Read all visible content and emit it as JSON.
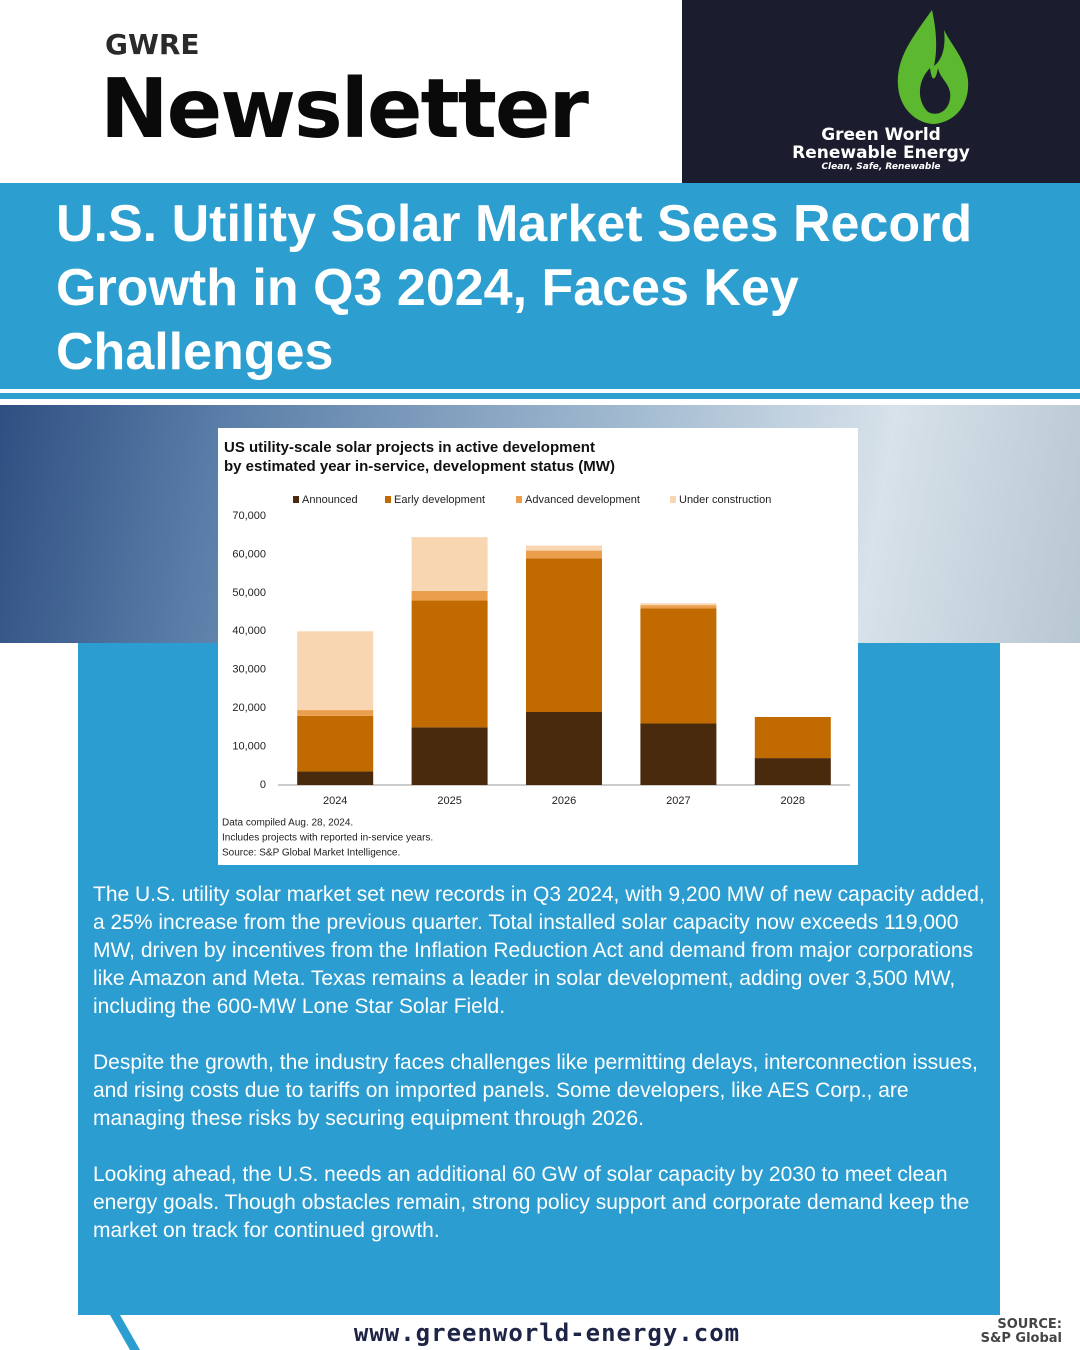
{
  "header": {
    "kicker": "GWRE",
    "title": "Newsletter",
    "brand": {
      "line1": "Green World",
      "line2": "Renewable Energy",
      "tagline": "Clean, Safe, Renewable"
    }
  },
  "headline": "U.S. Utility Solar Market Sees Record Growth in Q3 2024, Faces Key Challenges",
  "chart_data": {
    "type": "stacked-bar",
    "title": [
      "US utility-scale solar projects in active development",
      "by estimated year in-service, development status (MW)"
    ],
    "categories": [
      "2024",
      "2025",
      "2026",
      "2027",
      "2028"
    ],
    "series": [
      {
        "name": "Announced",
        "color": "#4a2a0c",
        "values": [
          3500,
          15000,
          19000,
          16000,
          7000
        ]
      },
      {
        "name": "Early development",
        "color": "#c06a00",
        "values": [
          14500,
          33000,
          40000,
          30000,
          10700
        ]
      },
      {
        "name": "Advanced development",
        "color": "#eb9f4c",
        "values": [
          1500,
          2500,
          2000,
          800,
          0
        ]
      },
      {
        "name": "Under construction",
        "color": "#f9d6b2",
        "values": [
          20500,
          14000,
          1300,
          500,
          0
        ]
      }
    ],
    "ylim": [
      0,
      70000
    ],
    "yticks": [
      0,
      {
        "value": 10000,
        "label": "10,000"
      },
      {
        "value": 20000,
        "label": "20,000"
      },
      {
        "value": 30000,
        "label": "30,000"
      },
      {
        "value": 40000,
        "label": "40,000"
      },
      {
        "value": 50000,
        "label": "50,000"
      },
      {
        "value": 60000,
        "label": "60,000"
      },
      {
        "value": 70000,
        "label": "70,000"
      }
    ],
    "grid": false,
    "notes": [
      "Data compiled Aug. 28, 2024.",
      "Includes projects with reported in-service years.",
      "Source: S&P Global Market Intelligence."
    ]
  },
  "body": [
    "The U.S. utility solar market set new records in Q3 2024, with 9,200 MW of new capacity added, a 25% increase from the previous quarter. Total installed solar capacity now exceeds 119,000 MW, driven by incentives from the Inflation Reduction Act and demand from major corporations like Amazon and Meta. Texas remains a leader in solar development, adding over 3,500 MW, including the 600-MW Lone Star Solar Field.",
    "Despite the growth, the industry faces challenges like permitting delays, interconnection issues, and rising costs due to tariffs on imported panels. Some developers, like AES Corp., are managing these risks by securing equipment through 2026.",
    "Looking ahead, the U.S. needs an additional 60 GW of solar capacity by 2030 to meet clean energy goals. Though obstacles remain, strong policy support and corporate demand keep the market on track for continued growth."
  ],
  "footer": {
    "url": "www.greenworld-energy.com",
    "source_label": "SOURCE:",
    "source": "S&P Global"
  }
}
